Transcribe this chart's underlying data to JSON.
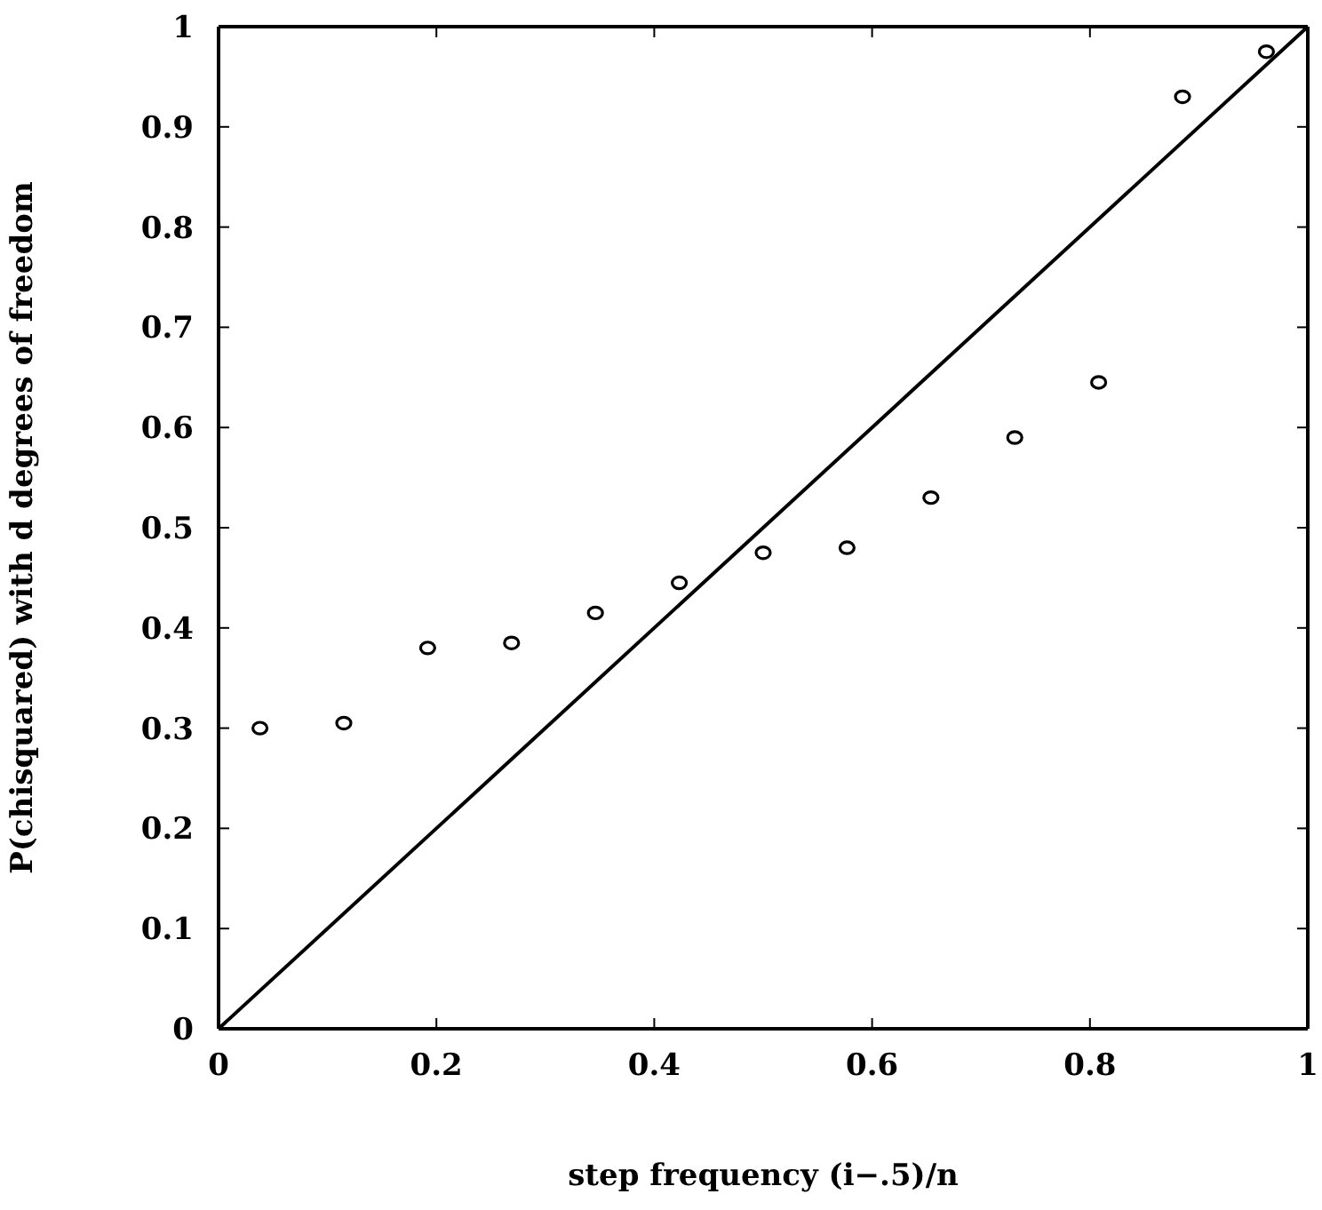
{
  "chart_data": {
    "type": "scatter",
    "xlabel": "step frequency (i−.5)/n",
    "ylabel": "P(chisquared) with d degrees of freedom",
    "xlim": [
      0,
      1
    ],
    "ylim": [
      0,
      1
    ],
    "xticks": [
      0,
      0.2,
      0.4,
      0.6,
      0.8,
      1
    ],
    "yticks": [
      0,
      0.1,
      0.2,
      0.3,
      0.4,
      0.5,
      0.6,
      0.7,
      0.8,
      0.9,
      1
    ],
    "series": [
      {
        "color": "#000000",
        "marker": "circle",
        "x": [
          0.038,
          0.115,
          0.192,
          0.269,
          0.346,
          0.423,
          0.5,
          0.577,
          0.654,
          0.731,
          0.808,
          0.885,
          0.962
        ],
        "values": [
          0.3,
          0.305,
          0.38,
          0.385,
          0.415,
          0.445,
          0.475,
          0.48,
          0.53,
          0.59,
          0.645,
          0.93,
          0.975
        ]
      },
      {
        "type": "line",
        "color": "#000000",
        "line_style": "solid",
        "marker": "none",
        "x": [
          0,
          1
        ],
        "values": [
          0,
          1
        ]
      }
    ]
  }
}
